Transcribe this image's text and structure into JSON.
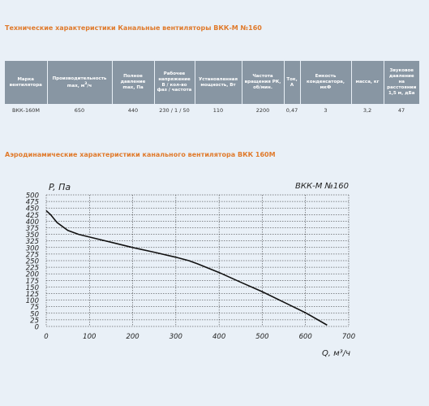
{
  "spec_title": "Технические характеристики Канальные вентиляторы ВКК-М №160",
  "table": {
    "headers": [
      "Марка вентилятора",
      "Производительность max, м",
      "Полное давление max, Па",
      "Рабочее напряжение В / кол-во фаз / частота",
      "Установленная мощность, Вт",
      "Частота вращения РК, об/мин.",
      "Ток, А",
      "Емкость конденсатора, мкФ",
      "масса, кг",
      "Звуковое давление на расстоянии 1,5 м, дБа"
    ],
    "header_suffix": "/ч",
    "header_sup": "3",
    "row": [
      "ВКК-160М",
      "650",
      "440",
      "230 / 1 / 50",
      "110",
      "2200",
      "0,47",
      "3",
      "3,2",
      "47"
    ]
  },
  "chart_title": "Аэродинамические характеристики канального вентилятора ВКК 160М",
  "chart_data": {
    "type": "line",
    "title": "ВКК-М №160",
    "xlabel": "Q, м³/ч",
    "ylabel": "P, Па",
    "xlim": [
      0,
      700
    ],
    "ylim": [
      0,
      500
    ],
    "xticks": [
      "0",
      "100",
      "200",
      "300",
      "400",
      "500",
      "600",
      "700"
    ],
    "yticks": [
      "0",
      "25",
      "50",
      "75",
      "100",
      "125",
      "150",
      "175",
      "200",
      "225",
      "250",
      "275",
      "300",
      "325",
      "350",
      "375",
      "400",
      "425",
      "450",
      "475",
      "500"
    ],
    "x": [
      0,
      10,
      25,
      50,
      75,
      100,
      150,
      200,
      250,
      300,
      330,
      350,
      400,
      450,
      500,
      550,
      600,
      650
    ],
    "y": [
      440,
      425,
      395,
      365,
      350,
      340,
      320,
      300,
      282,
      263,
      250,
      238,
      205,
      168,
      132,
      92,
      52,
      5
    ],
    "grid": true
  }
}
